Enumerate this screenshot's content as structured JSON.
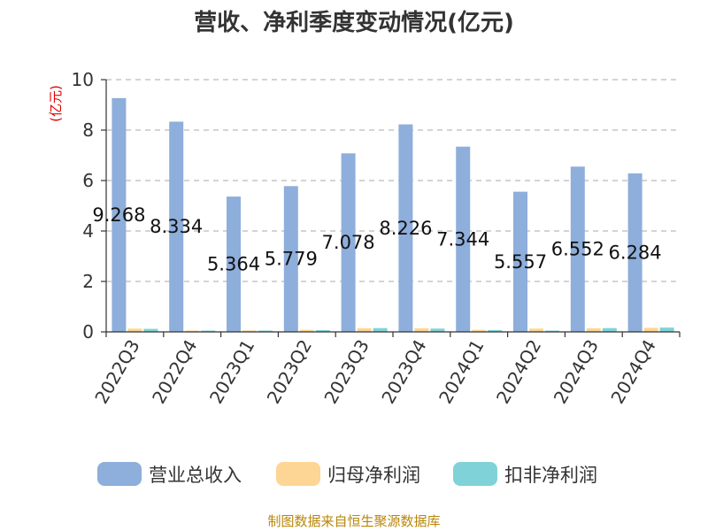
{
  "title": "营收、净利季度变动情况(亿元)",
  "source": "制图数据来自恒生聚源数据库",
  "colors": {
    "grid": "#bbbbbb",
    "axis": "#333333"
  },
  "chart_data": {
    "type": "bar",
    "title": "营收、净利季度变动情况(亿元)",
    "ylabel": "(亿元)",
    "xlabel": "",
    "ylim": [
      0,
      10
    ],
    "yticks": [
      0,
      2,
      4,
      6,
      8,
      10
    ],
    "grid": true,
    "legend_position": "bottom",
    "categories": [
      "2022Q3",
      "2022Q4",
      "2023Q1",
      "2023Q2",
      "2023Q3",
      "2023Q4",
      "2024Q1",
      "2024Q2",
      "2024Q3",
      "2024Q4"
    ],
    "series": [
      {
        "name": "营业总收入",
        "color": "#8eaedb",
        "values": [
          9.268,
          8.334,
          5.364,
          5.779,
          7.078,
          8.226,
          7.344,
          5.557,
          6.552,
          6.284
        ],
        "labels": [
          "9.268",
          "8.334",
          "5.364",
          "5.779",
          "7.078",
          "8.226",
          "7.344",
          "5.557",
          "6.552",
          "6.284"
        ]
      },
      {
        "name": "归母净利润",
        "color": "#fdd594",
        "values": [
          0.13,
          0.05,
          0.06,
          0.08,
          0.14,
          0.14,
          0.08,
          0.13,
          0.14,
          0.16
        ]
      },
      {
        "name": "扣非净利润",
        "color": "#7fd3d8",
        "values": [
          0.12,
          0.04,
          0.05,
          0.07,
          0.15,
          0.13,
          0.07,
          0.05,
          0.15,
          0.17
        ]
      }
    ]
  }
}
